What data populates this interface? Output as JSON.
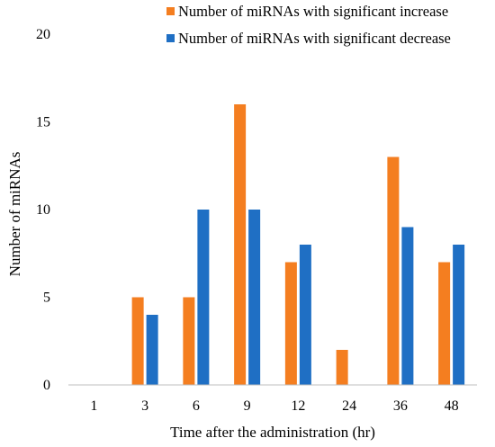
{
  "chart_data": {
    "type": "bar",
    "title": "",
    "xlabel": "Time after the administration (hr)",
    "ylabel": "Number of miRNAs",
    "categories": [
      "1",
      "3",
      "6",
      "9",
      "12",
      "24",
      "36",
      "48"
    ],
    "series": [
      {
        "name": "Number of miRNAs with significant increase",
        "color": "#f47e20",
        "values": [
          0,
          5,
          5,
          16,
          7,
          2,
          13,
          7
        ]
      },
      {
        "name": "Number of miRNAs with significant decrease",
        "color": "#1f6fc4",
        "values": [
          0,
          4,
          10,
          10,
          8,
          0,
          9,
          8
        ]
      }
    ],
    "ylim": [
      0,
      20
    ],
    "yticks": [
      "0",
      "5",
      "10",
      "15",
      "20"
    ],
    "grid": false,
    "legend_position": "top-right"
  }
}
